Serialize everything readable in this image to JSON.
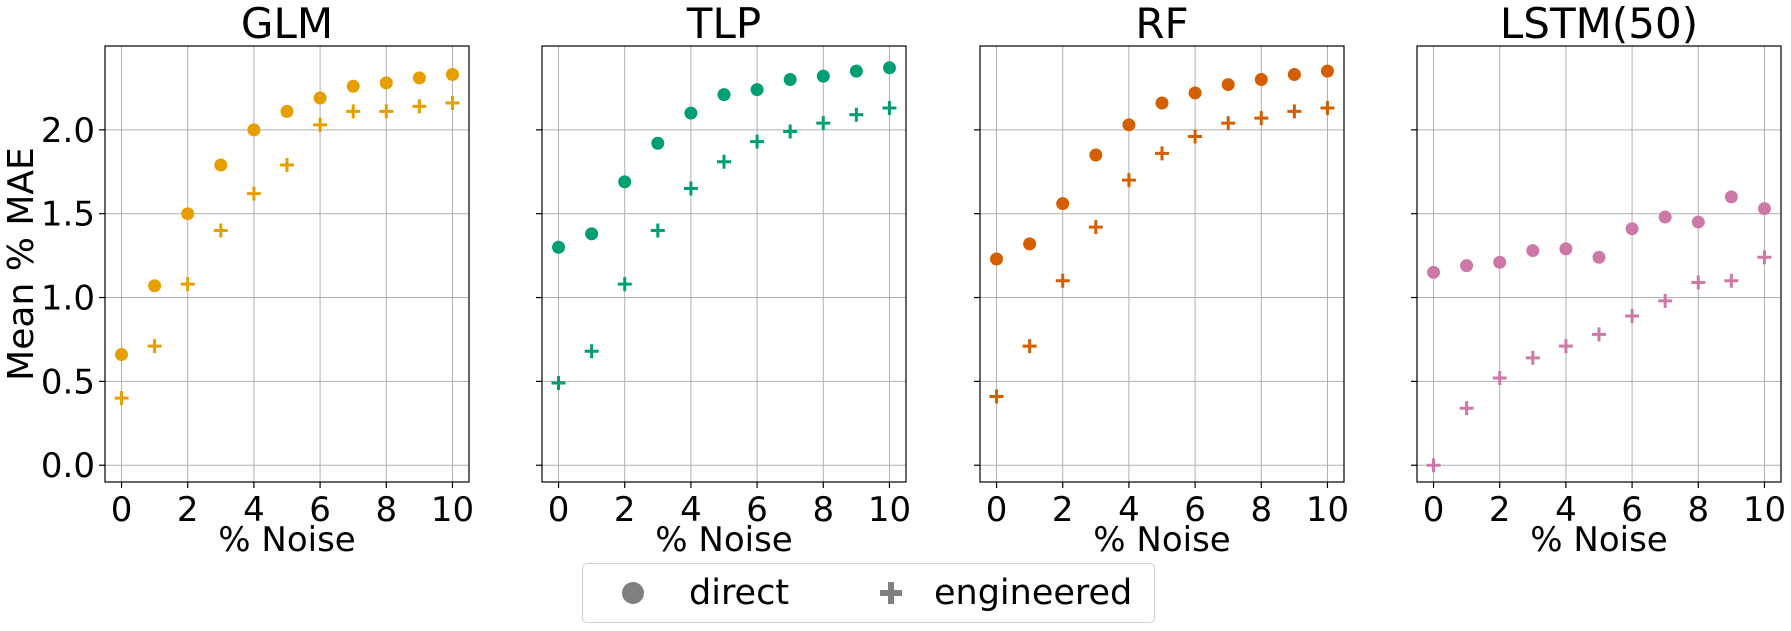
{
  "chart_data": {
    "type": "scatter",
    "shared_y_axis": true,
    "ylabel": "Mean % MAE",
    "xlabel": "% Noise",
    "xlim": [
      -0.5,
      10.5
    ],
    "ylim": [
      -0.1,
      2.5
    ],
    "xticks": [
      "0",
      "2",
      "4",
      "6",
      "8",
      "10"
    ],
    "xtick_values": [
      0,
      2,
      4,
      6,
      8,
      10
    ],
    "yticks": [
      "0.0",
      "0.5",
      "1.0",
      "1.5",
      "2.0"
    ],
    "ytick_values": [
      0.0,
      0.5,
      1.0,
      1.5,
      2.0
    ],
    "grid": true,
    "legend_position": "bottom-center",
    "legend": [
      {
        "marker": "circle",
        "label": "direct"
      },
      {
        "marker": "plus",
        "label": "engineered"
      }
    ],
    "x": [
      0,
      1,
      2,
      3,
      4,
      5,
      6,
      7,
      8,
      9,
      10
    ],
    "panels": [
      {
        "title": "GLM",
        "color": "#E69F00",
        "series": [
          {
            "name": "direct",
            "marker": "circle",
            "values": [
              0.66,
              1.07,
              1.5,
              1.79,
              2.0,
              2.11,
              2.19,
              2.26,
              2.28,
              2.31,
              2.33
            ]
          },
          {
            "name": "engineered",
            "marker": "plus",
            "values": [
              0.4,
              0.71,
              1.08,
              1.4,
              1.62,
              1.79,
              2.03,
              2.11,
              2.11,
              2.14,
              2.16
            ]
          }
        ]
      },
      {
        "title": "TLP",
        "color": "#009E73",
        "series": [
          {
            "name": "direct",
            "marker": "circle",
            "values": [
              1.3,
              1.38,
              1.69,
              1.92,
              2.1,
              2.21,
              2.24,
              2.3,
              2.32,
              2.35,
              2.37
            ]
          },
          {
            "name": "engineered",
            "marker": "plus",
            "values": [
              0.49,
              0.68,
              1.08,
              1.4,
              1.65,
              1.81,
              1.93,
              1.99,
              2.04,
              2.09,
              2.13
            ]
          }
        ]
      },
      {
        "title": "RF",
        "color": "#D55E00",
        "series": [
          {
            "name": "direct",
            "marker": "circle",
            "values": [
              1.23,
              1.32,
              1.56,
              1.85,
              2.03,
              2.16,
              2.22,
              2.27,
              2.3,
              2.33,
              2.35
            ]
          },
          {
            "name": "engineered",
            "marker": "plus",
            "values": [
              0.41,
              0.71,
              1.1,
              1.42,
              1.7,
              1.86,
              1.96,
              2.04,
              2.07,
              2.11,
              2.13
            ]
          }
        ]
      },
      {
        "title": "LSTM(50)",
        "color": "#CC79A7",
        "series": [
          {
            "name": "direct",
            "marker": "circle",
            "values": [
              1.15,
              1.19,
              1.21,
              1.28,
              1.29,
              1.24,
              1.41,
              1.48,
              1.45,
              1.6,
              1.53
            ]
          },
          {
            "name": "engineered",
            "marker": "plus",
            "values": [
              0.0,
              0.34,
              0.52,
              0.64,
              0.71,
              0.78,
              0.89,
              0.98,
              1.09,
              1.1,
              1.24
            ]
          }
        ]
      }
    ]
  },
  "legend_marker_color": "#808080"
}
